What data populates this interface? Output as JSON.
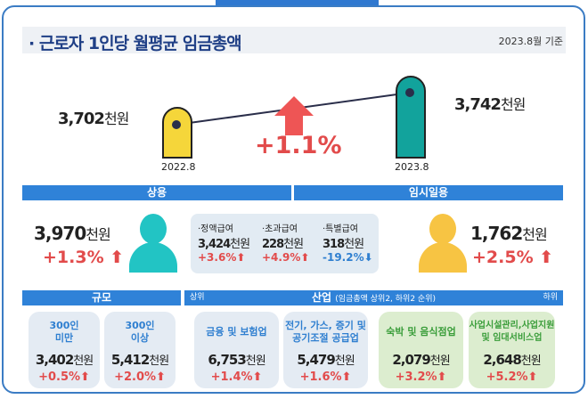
{
  "title": "· 근로자 1인당 월평균 임금총액",
  "basis": "2023.8월 기준",
  "trend": {
    "prev": {
      "label": "2022.8",
      "value": "3,702",
      "unit": "천원",
      "color": "#f5d63a"
    },
    "curr": {
      "label": "2023.8",
      "value": "3,742",
      "unit": "천원",
      "color": "#12a39c"
    },
    "change": "+1.1%"
  },
  "regular": {
    "header": "상용",
    "value": "3,970",
    "unit": "천원",
    "change": "+1.3%",
    "person_color": "#22c4c4",
    "breakdown": [
      {
        "label": "·정액급여",
        "value": "3,424",
        "unit": "천원",
        "change": "+3.6%",
        "direction": "up"
      },
      {
        "label": "·초과급여",
        "value": "228",
        "unit": "천원",
        "change": "+4.9%",
        "direction": "up"
      },
      {
        "label": "·특별급여",
        "value": "318",
        "unit": "천원",
        "change": "-19.2%",
        "direction": "down"
      }
    ]
  },
  "temporary": {
    "header": "임시일용",
    "value": "1,762",
    "unit": "천원",
    "change": "+2.5%",
    "person_color": "#f7c443"
  },
  "size": {
    "header": "규모",
    "cards": [
      {
        "name": "300인\n미만",
        "value": "3,402",
        "unit": "천원",
        "change": "+0.5%"
      },
      {
        "name": "300인\n이상",
        "value": "5,412",
        "unit": "천원",
        "change": "+2.0%"
      }
    ]
  },
  "industry": {
    "header": "산업",
    "subheader": "(임금총액 상위2, 하위2 순위)",
    "top_label": "상위",
    "bottom_label": "하위",
    "cards": [
      {
        "name": "금융 및 보험업",
        "value": "6,753",
        "unit": "천원",
        "change": "+1.4%"
      },
      {
        "name": "전기, 가스, 증기 및\n공기조절 공급업",
        "value": "5,479",
        "unit": "천원",
        "change": "+1.6%"
      },
      {
        "name": "숙박 및 음식점업",
        "value": "2,079",
        "unit": "천원",
        "change": "+3.2%"
      },
      {
        "name": "사업시설관리,사업지원\n및 임대서비스업",
        "value": "2,648",
        "unit": "천원",
        "change": "+5.2%"
      }
    ]
  },
  "colors": {
    "header_blue": "#2f82d8",
    "up_red": "#e24b4b",
    "down_blue": "#2f7fd0"
  }
}
